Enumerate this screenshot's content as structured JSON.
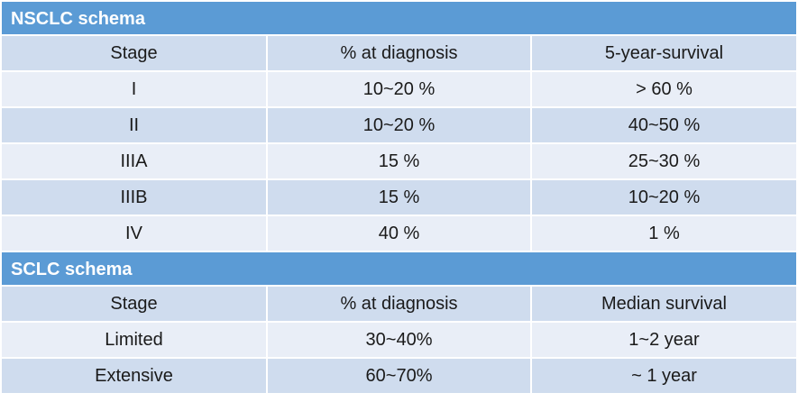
{
  "nsclc": {
    "title": "NSCLC schema",
    "headers": [
      "Stage",
      "% at diagnosis",
      "5-year-survival"
    ],
    "rows": [
      [
        "I",
        "10~20 %",
        "> 60 %"
      ],
      [
        "II",
        "10~20 %",
        "40~50 %"
      ],
      [
        "IIIA",
        "15 %",
        "25~30 %"
      ],
      [
        "IIIB",
        "15 %",
        "10~20 %"
      ],
      [
        "IV",
        "40 %",
        "1 %"
      ]
    ]
  },
  "sclc": {
    "title": "SCLC schema",
    "headers": [
      "Stage",
      "% at diagnosis",
      "Median survival"
    ],
    "rows": [
      [
        "Limited",
        "30~40%",
        "1~2 year"
      ],
      [
        "Extensive",
        "60~70%",
        "~ 1 year"
      ]
    ]
  },
  "colors": {
    "title_bar": "#5b9bd5",
    "band_dark": "#cfdcee",
    "band_light": "#e9eef7"
  }
}
